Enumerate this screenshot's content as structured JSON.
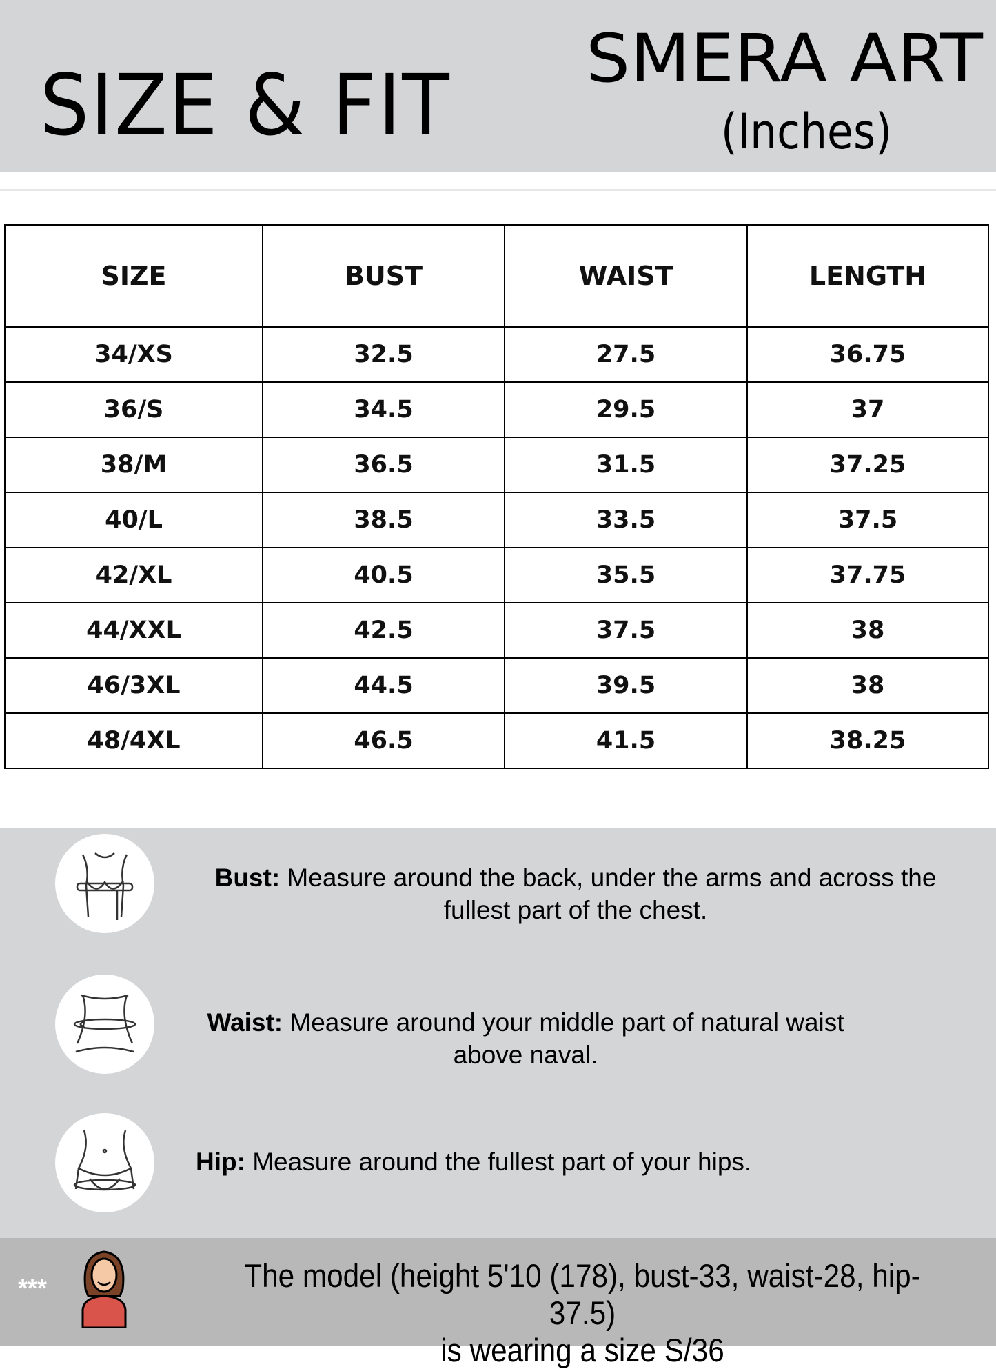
{
  "header": {
    "title": "SIZE & FIT",
    "brand": "SMERA ART",
    "units": "(Inches)"
  },
  "table": {
    "columns": [
      "SIZE",
      "BUST",
      "WAIST",
      "LENGTH"
    ],
    "rows": [
      [
        "34/XS",
        "32.5",
        "27.5",
        "36.75"
      ],
      [
        "36/S",
        "34.5",
        "29.5",
        "37"
      ],
      [
        "38/M",
        "36.5",
        "31.5",
        "37.25"
      ],
      [
        "40/L",
        "38.5",
        "33.5",
        "37.5"
      ],
      [
        "42/XL",
        "40.5",
        "35.5",
        "37.75"
      ],
      [
        "44/XXL",
        "42.5",
        "37.5",
        "38"
      ],
      [
        "46/3XL",
        "44.5",
        "39.5",
        "38"
      ],
      [
        "48/4XL",
        "46.5",
        "41.5",
        "38.25"
      ]
    ]
  },
  "guide": [
    {
      "label": "Bust:",
      "line1": " Measure around the back, under the arms and across the",
      "line2": "fullest part of the chest.",
      "icon": "bust-measure-icon"
    },
    {
      "label": "Waist:",
      "line1": " Measure around your middle part of natural waist",
      "line2": "above naval.",
      "icon": "waist-measure-icon"
    },
    {
      "label": "Hip:",
      "line1": " Measure around the fullest part of your hips.",
      "line2": "",
      "icon": "hip-measure-icon"
    }
  ],
  "model": {
    "stars": "***",
    "line1": "The model (height 5'10 (178), bust-33, waist-28, hip-37.5)",
    "line2": "is wearing a size S/36"
  },
  "colors": {
    "band": "#d4d5d7",
    "model_band": "#b8b8b8",
    "shirt": "#d9544a",
    "hair": "#7a4328"
  }
}
